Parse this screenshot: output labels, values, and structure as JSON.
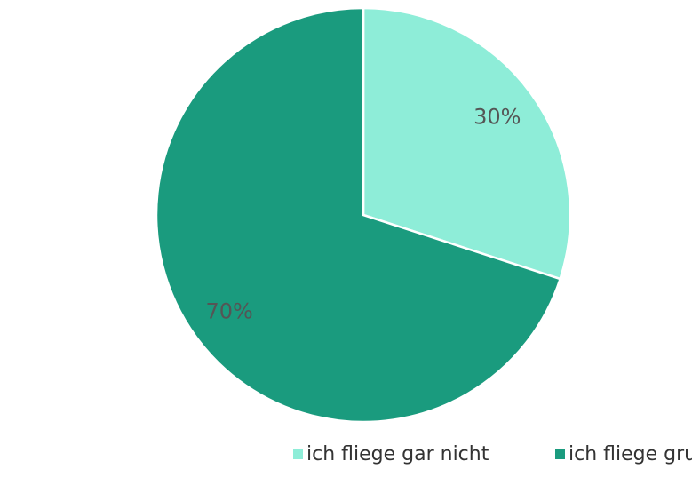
{
  "chart_data": {
    "type": "pie",
    "categories": [
      "ich fliege gar nicht",
      "ich fliege grundsätzlich schon"
    ],
    "values": [
      30,
      70
    ],
    "value_labels": [
      "30%",
      "70%"
    ],
    "colors": [
      "#8eedd8",
      "#1a9b7e"
    ],
    "legend": "bottom"
  }
}
